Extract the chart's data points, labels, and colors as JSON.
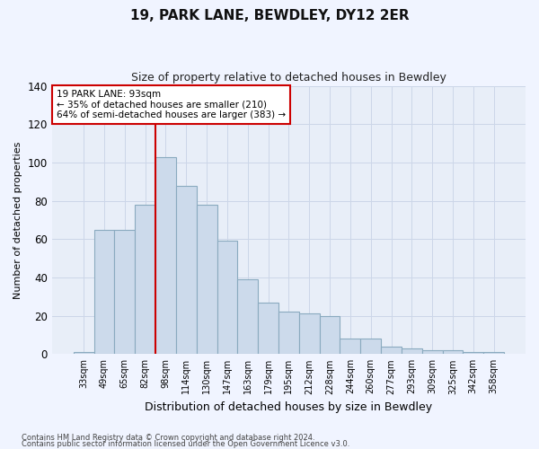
{
  "title": "19, PARK LANE, BEWDLEY, DY12 2ER",
  "subtitle": "Size of property relative to detached houses in Bewdley",
  "xlabel": "Distribution of detached houses by size in Bewdley",
  "ylabel": "Number of detached properties",
  "categories": [
    "33sqm",
    "49sqm",
    "65sqm",
    "82sqm",
    "98sqm",
    "114sqm",
    "130sqm",
    "147sqm",
    "163sqm",
    "179sqm",
    "195sqm",
    "212sqm",
    "228sqm",
    "244sqm",
    "260sqm",
    "277sqm",
    "293sqm",
    "309sqm",
    "325sqm",
    "342sqm",
    "358sqm"
  ],
  "values": [
    1,
    65,
    65,
    78,
    103,
    88,
    78,
    59,
    39,
    27,
    22,
    21,
    20,
    8,
    8,
    4,
    3,
    2,
    2,
    1,
    1
  ],
  "bar_color": "#ccdaeb",
  "bar_edge_color": "#8aaabf",
  "vline_index": 4,
  "vline_color": "#cc0000",
  "annotation_title": "19 PARK LANE: 93sqm",
  "annotation_line1": "← 35% of detached houses are smaller (210)",
  "annotation_line2": "64% of semi-detached houses are larger (383) →",
  "annotation_box_color": "#ffffff",
  "annotation_box_edge": "#cc0000",
  "grid_color": "#ccd6e8",
  "bg_color": "#e8eef8",
  "fig_bg_color": "#f0f4ff",
  "ylim": [
    0,
    140
  ],
  "yticks": [
    0,
    20,
    40,
    60,
    80,
    100,
    120,
    140
  ],
  "footnote1": "Contains HM Land Registry data © Crown copyright and database right 2024.",
  "footnote2": "Contains public sector information licensed under the Open Government Licence v3.0."
}
